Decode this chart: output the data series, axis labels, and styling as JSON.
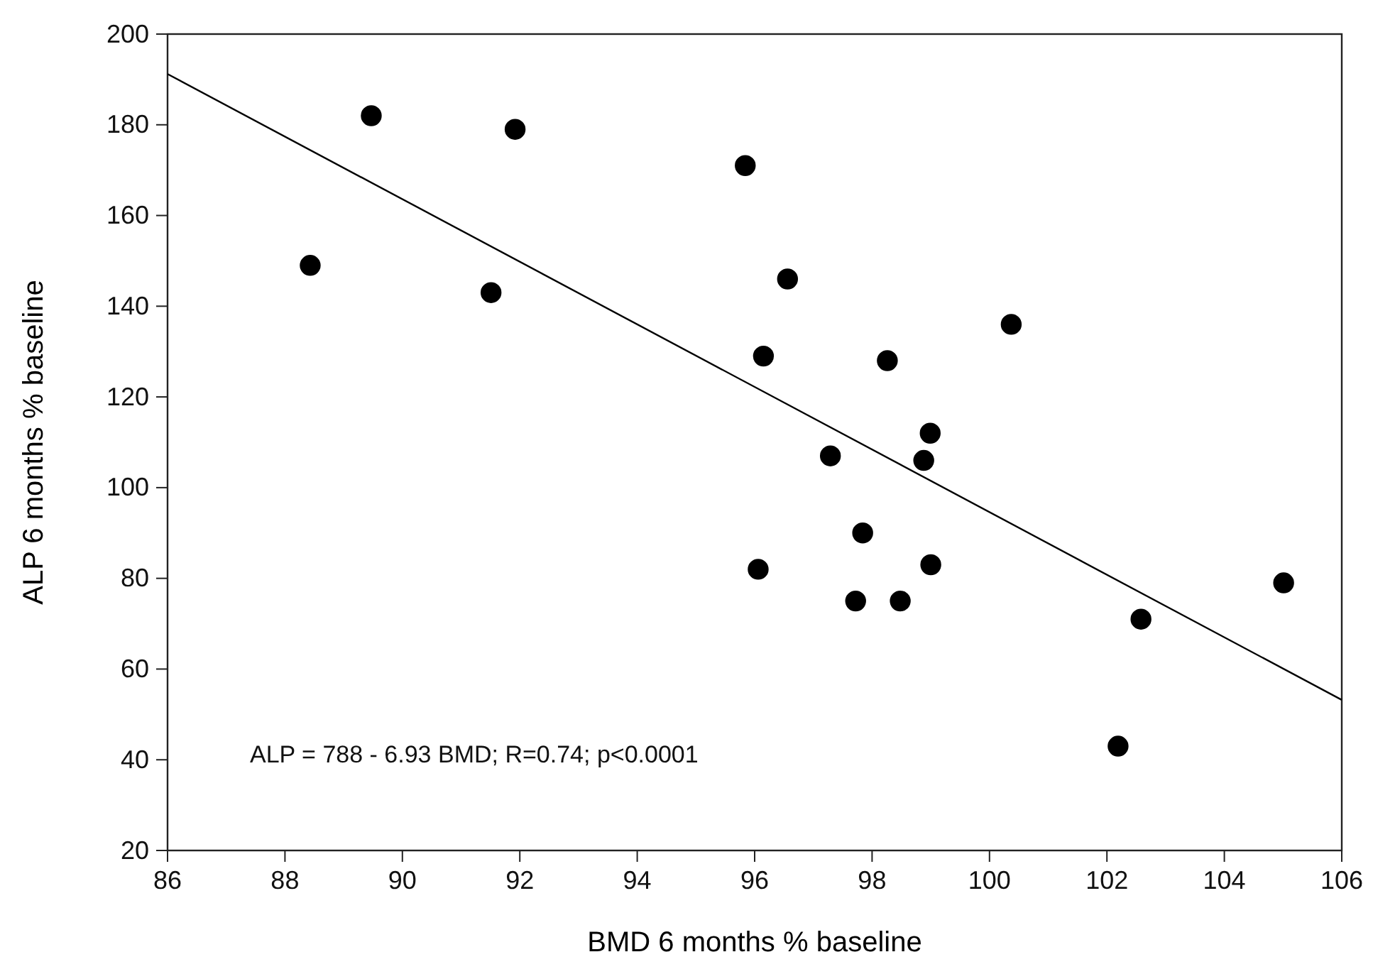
{
  "chart_data": {
    "type": "scatter",
    "xlabel": "BMD 6 months % baseline",
    "ylabel": "ALP 6 months % baseline",
    "xlim": [
      86,
      106
    ],
    "xticks": [
      86,
      88,
      90,
      92,
      94,
      96,
      98,
      100,
      102,
      104,
      106
    ],
    "ylim": [
      20,
      200
    ],
    "yticks": [
      20,
      40,
      60,
      80,
      100,
      120,
      140,
      160,
      180,
      200
    ],
    "grid": false,
    "marker": "circle",
    "annotations": [
      "ALP = 788 - 6.93 BMD; R=0.74; p<0.0001"
    ],
    "series": [
      {
        "type": "scatter",
        "color": "#000000",
        "x": [
          88.43,
          89.47,
          91.92,
          91.51,
          95.84,
          96.56,
          100.37,
          96.15,
          98.26,
          98.99,
          97.29,
          98.88,
          97.84,
          96.06,
          99.0,
          97.72,
          98.48,
          105.01,
          102.58,
          102.19
        ],
        "values": [
          149,
          182,
          179,
          143,
          171,
          146,
          136,
          129,
          128,
          112,
          107,
          106,
          90,
          82,
          83,
          75,
          75,
          79,
          71,
          43
        ]
      },
      {
        "type": "line",
        "color": "#000000",
        "line_style": "solid",
        "marker": "none",
        "x": [
          86,
          106
        ],
        "values": [
          191.2,
          53.2
        ]
      }
    ]
  }
}
